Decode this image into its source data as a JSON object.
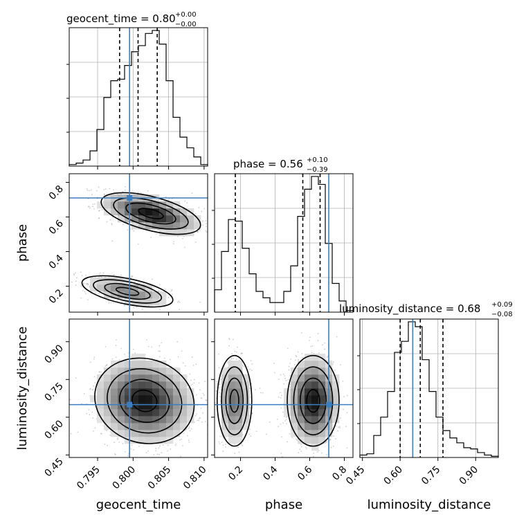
{
  "chart_data": {
    "type": "corner",
    "parameters": [
      "geocent_time",
      "phase",
      "luminosity_distance"
    ],
    "truths": {
      "geocent_time": 0.7995,
      "phase": 0.71,
      "luminosity_distance": 0.65
    },
    "colors": {
      "truth": "#3a7ebf",
      "line": "#000000",
      "grid": "#b0b0b0",
      "scatter": "#9a9a9a"
    },
    "titles": {
      "geocent_time": {
        "name": "geocent_time",
        "value": "0.80",
        "plus": "+0.00",
        "minus": "−0.00"
      },
      "phase": {
        "name": "phase",
        "value": "0.56",
        "plus": "+0.10",
        "minus": "−0.39"
      },
      "luminosity_distance": {
        "name": "luminosity_distance",
        "value": "0.68",
        "plus": "+0.09",
        "minus": "−0.08"
      }
    },
    "axes": {
      "geocent_time": {
        "label": "geocent_time",
        "range": [
          0.791,
          0.8105
        ],
        "ticks": [
          0.795,
          0.8,
          0.805,
          0.81
        ],
        "tick_labels": [
          "0.795",
          "0.800",
          "0.805",
          "0.810"
        ]
      },
      "phase": {
        "label": "phase",
        "range": [
          0.05,
          0.85
        ],
        "ticks": [
          0.2,
          0.4,
          0.6,
          0.8
        ],
        "tick_labels": [
          "0.2",
          "0.4",
          "0.6",
          "0.8"
        ]
      },
      "luminosity_distance": {
        "label": "luminosity_distance",
        "range": [
          0.44,
          0.99
        ],
        "ticks": [
          0.45,
          0.6,
          0.75,
          0.9
        ],
        "tick_labels": [
          "0.45",
          "0.60",
          "0.75",
          "0.90"
        ]
      }
    },
    "quantiles": {
      "geocent_time": [
        0.7981,
        0.8007,
        0.8034
      ],
      "phase": [
        0.17,
        0.56,
        0.66
      ],
      "luminosity_distance": [
        0.6,
        0.68,
        0.77
      ]
    },
    "histograms": {
      "geocent_time": {
        "edges": [
          0.791,
          0.79198,
          0.79295,
          0.79393,
          0.7949,
          0.79588,
          0.79685,
          0.79783,
          0.7988,
          0.79978,
          0.80075,
          0.80173,
          0.8027,
          0.80368,
          0.80465,
          0.80563,
          0.8066,
          0.80758,
          0.80855,
          0.80953,
          0.8105
        ],
        "counts": [
          1,
          2,
          4,
          10,
          24,
          45,
          56,
          57,
          66,
          75,
          79,
          87,
          89,
          80,
          56,
          32,
          19,
          12,
          6,
          1
        ]
      },
      "phase": {
        "edges": [
          0.05,
          0.09,
          0.13,
          0.17,
          0.21,
          0.25,
          0.29,
          0.33,
          0.37,
          0.41,
          0.45,
          0.49,
          0.53,
          0.57,
          0.61,
          0.65,
          0.69,
          0.73,
          0.77,
          0.81,
          0.85
        ],
        "counts": [
          14,
          38,
          58,
          57,
          40,
          24,
          13,
          9,
          6,
          6,
          13,
          29,
          60,
          77,
          85,
          80,
          43,
          18,
          7,
          1
        ]
      },
      "luminosity_distance": {
        "edges": [
          0.44,
          0.4675,
          0.495,
          0.5225,
          0.55,
          0.5775,
          0.605,
          0.6325,
          0.66,
          0.6875,
          0.715,
          0.7425,
          0.77,
          0.7975,
          0.825,
          0.8525,
          0.88,
          0.9075,
          0.935,
          0.9625,
          0.99
        ],
        "counts": [
          2,
          3,
          18,
          33,
          54,
          86,
          95,
          111,
          107,
          80,
          54,
          33,
          22,
          16,
          12,
          8,
          7,
          4,
          2,
          1
        ]
      }
    },
    "panels_2d": [
      {
        "x": "geocent_time",
        "y": "phase",
        "modes": [
          {
            "center": [
              0.8025,
              0.62
            ],
            "sx": 0.0035,
            "sy": 0.06,
            "rho": -0.55,
            "weight": 0.65
          },
          {
            "center": [
              0.7992,
              0.17
            ],
            "sx": 0.0032,
            "sy": 0.045,
            "rho": -0.55,
            "weight": 0.35
          }
        ]
      },
      {
        "x": "geocent_time",
        "y": "luminosity_distance",
        "modes": [
          {
            "center": [
              0.8016,
              0.665
            ],
            "sx": 0.0035,
            "sy": 0.085,
            "rho": -0.1,
            "weight": 1.0
          }
        ]
      },
      {
        "x": "phase",
        "y": "luminosity_distance",
        "modes": [
          {
            "center": [
              0.62,
              0.665
            ],
            "sx": 0.075,
            "sy": 0.09,
            "rho": 0.0,
            "weight": 0.62
          },
          {
            "center": [
              0.165,
              0.665
            ],
            "sx": 0.05,
            "sy": 0.09,
            "rho": 0.0,
            "weight": 0.38
          }
        ]
      }
    ]
  }
}
